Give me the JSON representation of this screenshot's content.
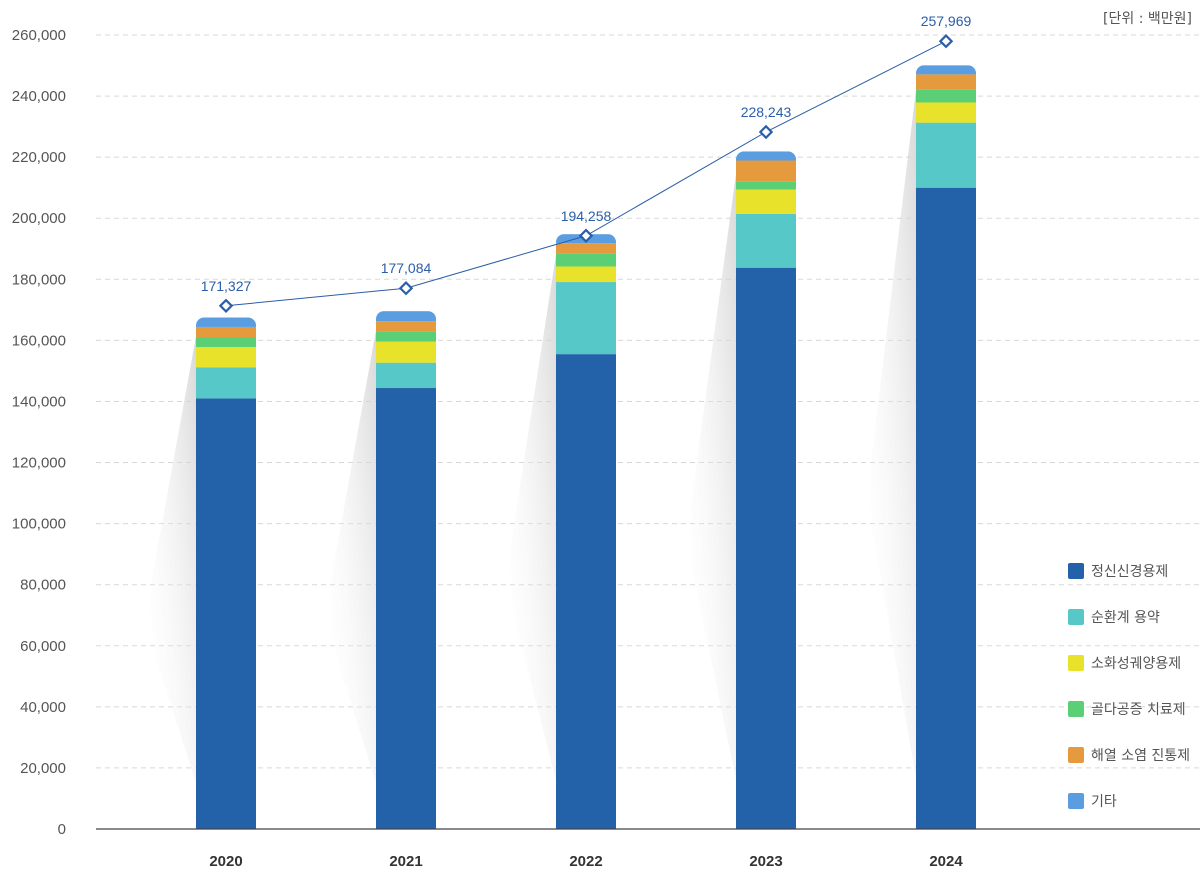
{
  "unit_label": "[단위 : 백만원]",
  "chart_data": {
    "type": "bar",
    "stacked": true,
    "unit": "[단위 : 백만원]",
    "categories": [
      "2020",
      "2021",
      "2022",
      "2023",
      "2024"
    ],
    "ylim": [
      0,
      260000
    ],
    "yticks": [
      0,
      20000,
      40000,
      60000,
      80000,
      100000,
      120000,
      140000,
      160000,
      180000,
      200000,
      220000,
      240000,
      260000
    ],
    "ytick_labels": [
      "0",
      "20,000",
      "40,000",
      "60,000",
      "80,000",
      "100,000",
      "120,000",
      "140,000",
      "160,000",
      "180,000",
      "200,000",
      "220,000",
      "240,000",
      "260,000"
    ],
    "grid": true,
    "legend_position": "right",
    "series": [
      {
        "name": "정신신경용제",
        "color": "#2361a8",
        "values": [
          141000,
          144400,
          155500,
          183800,
          210000
        ]
      },
      {
        "name": "순환계 용약",
        "color": "#56c8c8",
        "values": [
          10200,
          8300,
          23600,
          17600,
          21300
        ]
      },
      {
        "name": "소화성궤양용제",
        "color": "#e8e32a",
        "values": [
          6600,
          6900,
          5100,
          8000,
          6600
        ]
      },
      {
        "name": "골다공증 치료제",
        "color": "#5bcf75",
        "values": [
          3300,
          3400,
          4300,
          2700,
          4200
        ]
      },
      {
        "name": "해열 소염 진통제",
        "color": "#e59a3e",
        "values": [
          3300,
          3300,
          3300,
          6800,
          5000
        ]
      },
      {
        "name": "기타",
        "color": "#5a9de0",
        "values": [
          3100,
          3300,
          3000,
          3000,
          3000
        ]
      }
    ],
    "line": {
      "values": [
        171327,
        177084,
        194258,
        228243,
        257969
      ],
      "labels": [
        "171,327",
        "177,084",
        "194,258",
        "228,243",
        "257,969"
      ],
      "color": "#2a5ea8"
    }
  }
}
